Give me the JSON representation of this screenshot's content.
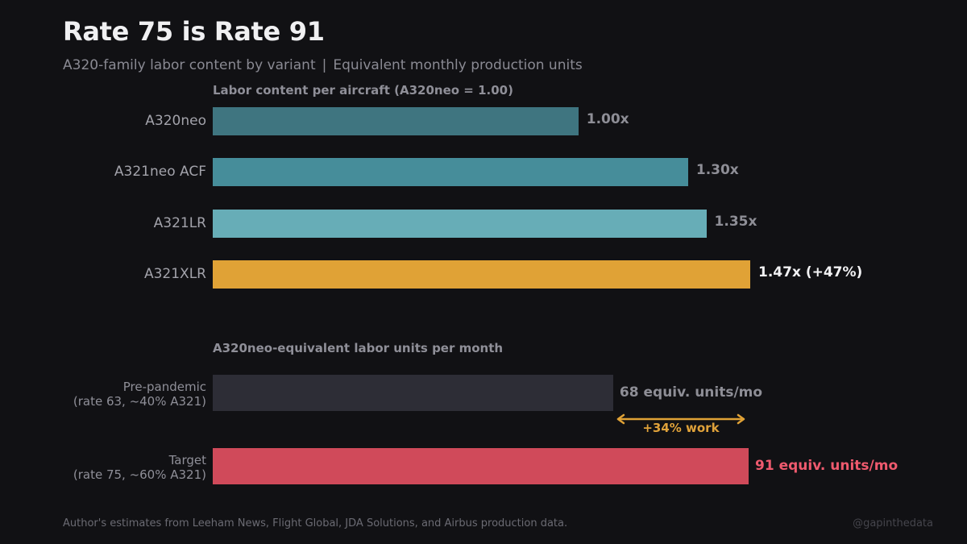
{
  "header": {
    "title": "Rate 75 is Rate 91",
    "subtitle_left": "A320-family labor content by variant",
    "subtitle_sep": "|",
    "subtitle_right": "Equivalent monthly production units"
  },
  "chart_data": [
    {
      "type": "bar",
      "orientation": "horizontal",
      "title": "Labor content per aircraft  (A320neo = 1.00)",
      "categories": [
        "A320neo",
        "A321neo ACF",
        "A321LR",
        "A321XLR"
      ],
      "values": [
        1.0,
        1.3,
        1.35,
        1.47
      ],
      "value_labels": [
        "1.00x",
        "1.30x",
        "1.35x",
        "1.47x  (+47%)"
      ],
      "colors": [
        "#3f7580",
        "#468d9a",
        "#67adb7",
        "#e0a236"
      ],
      "xlim": [
        0,
        1.47
      ]
    },
    {
      "type": "bar",
      "orientation": "horizontal",
      "title": "A320neo-equivalent labor units per month",
      "categories": [
        {
          "line1": "Pre-pandemic",
          "line2": "(rate 63, ~40% A321)"
        },
        {
          "line1": "Target",
          "line2": "(rate 75, ~60% A321)"
        }
      ],
      "values": [
        68,
        91
      ],
      "value_labels": [
        "68 equiv. units/mo",
        "91 equiv. units/mo"
      ],
      "colors": [
        "#2d2d36",
        "#d04a5a"
      ],
      "xlim": [
        0,
        91
      ],
      "annotation": {
        "text": "+34% work",
        "from": 68,
        "to": 91,
        "color": "#e0a236"
      }
    }
  ],
  "footer": {
    "source": "Author's estimates from Leeham News, Flight Global, JDA Solutions, and Airbus production data.",
    "credit": "@gapinthedata"
  }
}
